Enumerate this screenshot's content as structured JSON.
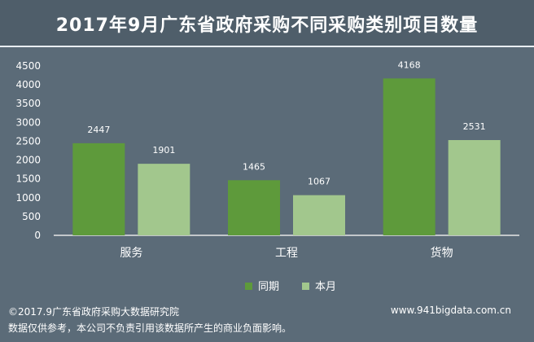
{
  "title": "2017年9月广东省政府采购不同采购类别项目数量",
  "chart_data": {
    "type": "bar",
    "title": "2017年9月广东省政府采购不同采购类别项目数量",
    "categories": [
      "服务",
      "工程",
      "货物"
    ],
    "series": [
      {
        "name": "同期",
        "color": "#5e9a3b",
        "values": [
          2447,
          1465,
          4168
        ]
      },
      {
        "name": "本月",
        "color": "#a2c78d",
        "values": [
          1901,
          1067,
          2531
        ]
      }
    ],
    "yticks": [
      0,
      500,
      1000,
      1500,
      2000,
      2500,
      3000,
      3500,
      4000,
      4500
    ],
    "ylim": [
      0,
      4500
    ],
    "grid": false,
    "legend": "bottom-right"
  },
  "footer": {
    "copyright": "©2017.9广东省政府采购大数据研究院",
    "disclaimer": "数据仅供参考，本公司不负责引用该数据所产生的商业负面影响。",
    "website": "www.941bigdata.com.cn"
  }
}
